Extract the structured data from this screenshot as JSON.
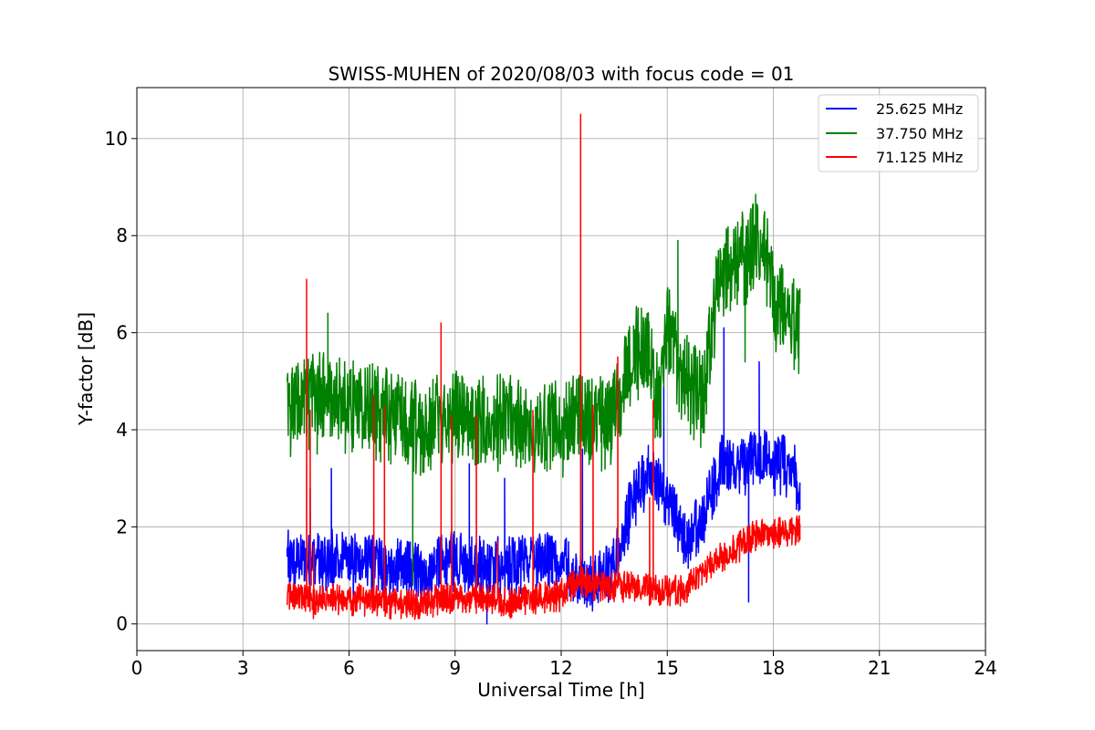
{
  "chart_data": {
    "type": "line",
    "title": "SWISS-MUHEN of 2020/08/03 with focus code = 01",
    "xlabel": "Universal Time [h]",
    "ylabel": "Y-factor [dB]",
    "xlim": [
      0,
      24
    ],
    "ylim": [
      -0.55,
      11.05
    ],
    "xticks": [
      0,
      3,
      6,
      9,
      12,
      15,
      18,
      21,
      24
    ],
    "yticks": [
      0,
      2,
      4,
      6,
      8,
      10
    ],
    "grid": true,
    "legend_position": "top-right",
    "series": [
      {
        "name": "25.625 MHz",
        "color": "#0000ff",
        "x": [
          4.25,
          4.5,
          5.0,
          5.5,
          6.0,
          6.5,
          7.0,
          7.5,
          8.0,
          8.5,
          9.0,
          9.5,
          10.0,
          10.5,
          11.0,
          11.5,
          12.0,
          12.5,
          13.0,
          13.5,
          14.0,
          14.5,
          15.0,
          15.5,
          16.0,
          16.5,
          17.0,
          17.5,
          18.0,
          18.5,
          18.75
        ],
        "values": [
          1.4,
          1.3,
          1.35,
          1.4,
          1.35,
          1.3,
          1.25,
          1.2,
          1.1,
          1.3,
          1.4,
          1.3,
          1.25,
          1.25,
          1.3,
          1.35,
          1.4,
          1.0,
          0.9,
          1.3,
          2.6,
          3.2,
          2.7,
          1.8,
          2.2,
          3.4,
          3.2,
          3.6,
          3.4,
          3.3,
          3.0
        ],
        "noise": 0.55,
        "spikes": [
          [
            4.9,
            2.8
          ],
          [
            5.5,
            3.2
          ],
          [
            9.4,
            3.3
          ],
          [
            10.4,
            3.0
          ],
          [
            12.6,
            3.6
          ],
          [
            14.9,
            4.9
          ],
          [
            16.6,
            6.1
          ],
          [
            17.6,
            5.4
          ],
          [
            17.3,
            0.45
          ],
          [
            9.9,
            0.0
          ]
        ]
      },
      {
        "name": "37.750 MHz",
        "color": "#008000",
        "x": [
          4.25,
          4.5,
          5.0,
          5.5,
          6.0,
          6.5,
          7.0,
          7.5,
          8.0,
          8.5,
          9.0,
          9.5,
          10.0,
          10.5,
          11.0,
          11.5,
          12.0,
          12.5,
          13.0,
          13.5,
          14.0,
          14.5,
          14.8,
          15.0,
          15.5,
          16.0,
          16.5,
          17.0,
          17.5,
          17.9,
          18.0,
          18.5,
          18.75
        ],
        "values": [
          4.6,
          4.7,
          4.8,
          4.7,
          4.6,
          4.6,
          4.5,
          4.3,
          4.2,
          4.3,
          4.4,
          4.3,
          4.3,
          4.3,
          4.2,
          4.1,
          4.2,
          4.3,
          4.2,
          4.4,
          5.8,
          5.6,
          4.4,
          6.2,
          5.2,
          4.7,
          7.4,
          7.6,
          7.9,
          7.6,
          6.7,
          6.4,
          6.1
        ],
        "noise": 0.85,
        "spikes": [
          [
            5.4,
            6.4
          ],
          [
            15.3,
            7.9
          ],
          [
            17.5,
            8.85
          ],
          [
            17.2,
            5.4
          ],
          [
            7.8,
            0.8
          ],
          [
            5.1,
            3.5
          ]
        ]
      },
      {
        "name": "71.125 MHz",
        "color": "#ff0000",
        "x": [
          4.25,
          4.5,
          5.0,
          5.5,
          6.0,
          6.5,
          7.0,
          7.5,
          8.0,
          8.5,
          9.0,
          9.5,
          10.0,
          10.5,
          11.0,
          11.5,
          12.0,
          12.5,
          13.0,
          13.5,
          14.0,
          14.5,
          15.0,
          15.5,
          16.0,
          16.5,
          17.0,
          17.5,
          18.0,
          18.5,
          18.75
        ],
        "values": [
          0.6,
          0.55,
          0.5,
          0.55,
          0.55,
          0.55,
          0.5,
          0.45,
          0.45,
          0.55,
          0.6,
          0.6,
          0.55,
          0.5,
          0.55,
          0.6,
          0.65,
          0.9,
          0.85,
          0.8,
          0.8,
          0.75,
          0.75,
          0.75,
          1.1,
          1.4,
          1.6,
          1.9,
          1.9,
          2.0,
          2.0
        ],
        "noise": 0.28,
        "spikes": [
          [
            4.8,
            7.1
          ],
          [
            4.9,
            4.4
          ],
          [
            5.0,
            1.6
          ],
          [
            6.7,
            4.7
          ],
          [
            7.0,
            4.5
          ],
          [
            8.6,
            6.2
          ],
          [
            8.9,
            4.3
          ],
          [
            9.6,
            4.3
          ],
          [
            10.2,
            1.7
          ],
          [
            11.2,
            4.4
          ],
          [
            12.55,
            10.5
          ],
          [
            12.9,
            4.5
          ],
          [
            13.6,
            5.5
          ],
          [
            14.5,
            2.6
          ],
          [
            14.6,
            4.6
          ]
        ]
      }
    ]
  }
}
